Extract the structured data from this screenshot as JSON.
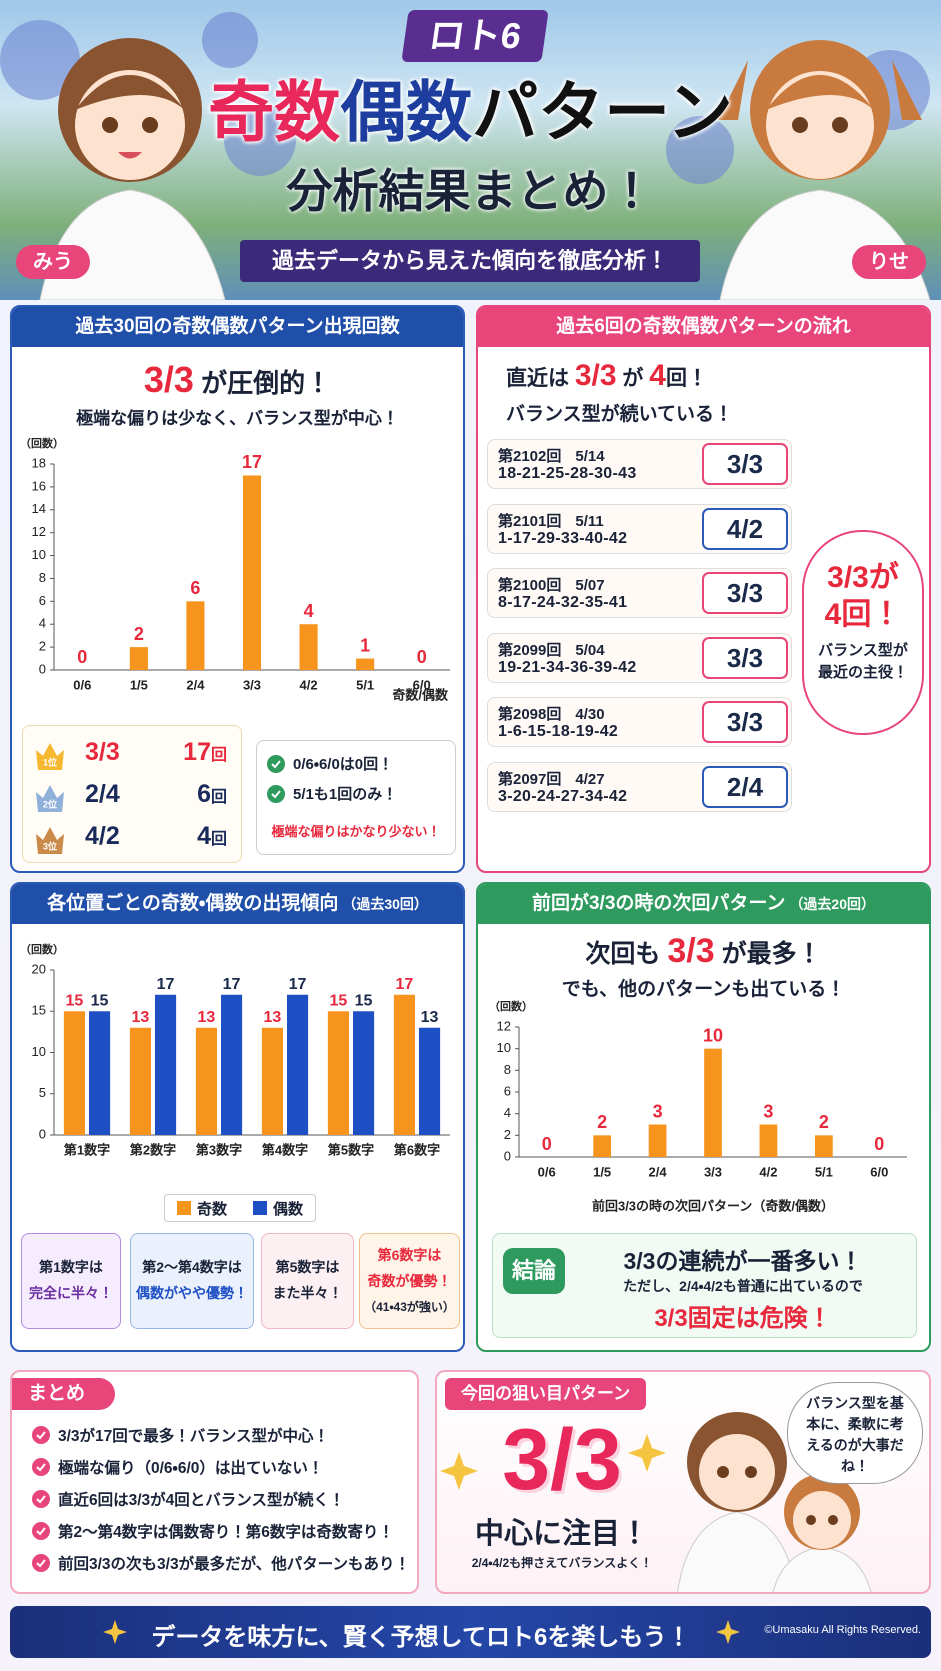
{
  "header": {
    "badge": "ロト6",
    "title_odd": "奇数",
    "title_even": "偶数",
    "title_rest": "パターン",
    "title_line2": "分析結果まとめ！",
    "subtitle": "過去データから見えた傾向を徹底分析！",
    "characters": [
      "みう",
      "りせ"
    ]
  },
  "sections": {
    "frequency": {
      "title": "過去30回の奇数偶数パターン出現回数",
      "headline": [
        "3/3",
        "が圧倒的！"
      ],
      "subhead": "極端な偏りは少なく、バランス型が中心！",
      "ranking": [
        {
          "rank": "1位",
          "pattern": "3/3",
          "count": 17,
          "unit": "回"
        },
        {
          "rank": "2位",
          "pattern": "2/4",
          "count": 6,
          "unit": "回"
        },
        {
          "rank": "3位",
          "pattern": "4/2",
          "count": 4,
          "unit": "回"
        }
      ],
      "notes": [
        "0/6・6/0は0回！",
        "5/1も1回のみ！"
      ],
      "note_alert": "極端な偏りはかなり少ない！"
    },
    "recent": {
      "title": "過去6回の奇数偶数パターンの流れ",
      "headline": [
        "直近は",
        "3/3",
        "が",
        "4",
        "回！"
      ],
      "subhead": "バランス型が続いている！",
      "draws": [
        {
          "draw": "第2102回",
          "date": "5/14",
          "numbers": "18-21-25-28-30-43",
          "pattern": "3/3"
        },
        {
          "draw": "第2101回",
          "date": "5/11",
          "numbers": "1-17-29-33-40-42",
          "pattern": "4/2"
        },
        {
          "draw": "第2100回",
          "date": "5/07",
          "numbers": "8-17-24-32-35-41",
          "pattern": "3/3"
        },
        {
          "draw": "第2099回",
          "date": "5/04",
          "numbers": "19-21-34-36-39-42",
          "pattern": "3/3"
        },
        {
          "draw": "第2098回",
          "date": "4/30",
          "numbers": "1-6-15-18-19-42",
          "pattern": "3/3"
        },
        {
          "draw": "第2097回",
          "date": "4/27",
          "numbers": "3-20-24-27-34-42",
          "pattern": "2/4"
        }
      ],
      "bubble": [
        "3/3が",
        "4回！",
        "バランス型が最近の主役！"
      ]
    },
    "position": {
      "title": "各位置ごとの奇数・偶数の出現傾向",
      "note": "（過去30回）",
      "cards": [
        [
          "第1数字は",
          "完全に半々！"
        ],
        [
          "第2〜第4数字は",
          "偶数がやや優勢！"
        ],
        [
          "第5数字は",
          "また半々！"
        ],
        [
          "第6数字は",
          "奇数が優勢！",
          "（41・43が強い）"
        ]
      ]
    },
    "next": {
      "title": "前回が3/3の時の次回パターン",
      "note": "（過去20回）",
      "headline": [
        "次回も",
        "3/3",
        "が最多！"
      ],
      "subhead": "でも、他のパターンも出ている！",
      "conclusion": {
        "badge": "結論",
        "head": "3/3の連続が一番多い！",
        "body": "ただし、2/4・4/2も普通に出ているので",
        "alert": "3/3固定は危険！"
      }
    },
    "summary": {
      "title": "まとめ",
      "items": [
        "3/3が17回で最多！バランス型が中心！",
        "極端な偏り（0/6・6/0）は出ていない！",
        "直近6回は3/3が4回とバランス型が続く！",
        "第2〜第4数字は偶数寄り！第6数字は奇数寄り！",
        "前回3/3の次も3/3が最多だが、他パターンもあり！"
      ]
    },
    "target": {
      "title": "今回の狙い目パターン",
      "pattern": "3/3",
      "focus": "中心に注目！",
      "tip": "2/4・4/2も押さえてバランスよく！",
      "speech": "バランス型を基本に、柔軟に考えるのが大事だね！"
    }
  },
  "footer": {
    "message": "データを味方に、賢く予想してロト6を楽しもう！",
    "copyright": "©Umasaku All Rights Reserved."
  },
  "chart_data": [
    {
      "type": "bar",
      "ylabel": "（回数）",
      "xlabel": "奇数/偶数",
      "categories": [
        "0/6",
        "1/5",
        "2/4",
        "3/3",
        "4/2",
        "5/1",
        "6/0"
      ],
      "values": [
        0,
        2,
        6,
        17,
        4,
        1,
        0
      ],
      "color": "#f7941d",
      "label_color": "#e8283c",
      "ylim": [
        0,
        18
      ],
      "yticks": [
        0,
        2,
        4,
        6,
        8,
        10,
        12,
        14,
        16,
        18
      ],
      "grid": false
    },
    {
      "type": "bar",
      "ylabel": "（回数）",
      "categories": [
        "第1数字",
        "第2数字",
        "第3数字",
        "第4数字",
        "第5数字",
        "第6数字"
      ],
      "series": [
        {
          "name": "奇数",
          "color": "#f7941d",
          "label_color": "#e8283c",
          "values": [
            15,
            13,
            13,
            13,
            15,
            17
          ]
        },
        {
          "name": "偶数",
          "color": "#1f4fc4",
          "label_color": "#1a2a4a",
          "values": [
            15,
            17,
            17,
            17,
            15,
            13
          ]
        }
      ],
      "ylim": [
        0,
        20
      ],
      "yticks": [
        0,
        5,
        10,
        15,
        20
      ],
      "grid": false,
      "legend": "bottom"
    },
    {
      "type": "bar",
      "ylabel": "（回数）",
      "xlabel": "前回3/3の時の次回パターン（奇数/偶数）",
      "categories": [
        "0/6",
        "1/5",
        "2/4",
        "3/3",
        "4/2",
        "5/1",
        "6/0"
      ],
      "values": [
        0,
        2,
        3,
        10,
        3,
        2,
        0
      ],
      "color": "#f7941d",
      "label_color": "#e8283c",
      "ylim": [
        0,
        12
      ],
      "yticks": [
        0,
        2,
        4,
        6,
        8,
        10,
        12
      ],
      "grid": false
    }
  ]
}
